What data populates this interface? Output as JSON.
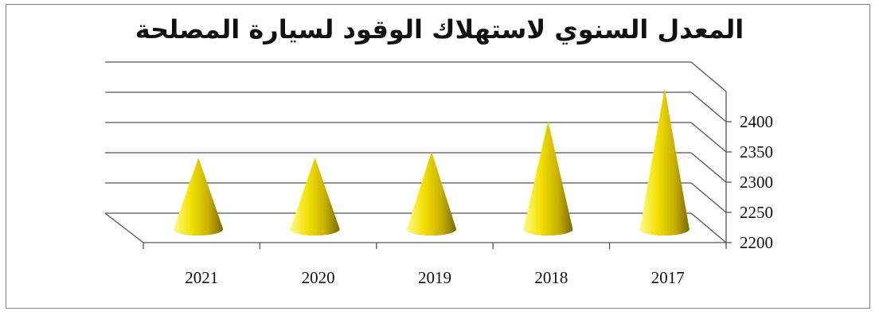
{
  "chart_data": {
    "type": "bar",
    "title": "المعدل السنوي لاستهلاك الوقود لسيارة المصلحة",
    "categories": [
      "2021",
      "2020",
      "2019",
      "2018",
      "2017"
    ],
    "values": [
      2300,
      2300,
      2310,
      2360,
      2415
    ],
    "ylim": [
      2200,
      2450
    ],
    "y_ticks": [
      "2200",
      "2250",
      "2300",
      "2350",
      "2400"
    ],
    "xlabel": "",
    "ylabel": "",
    "grid": true,
    "y_axis_side": "right",
    "mark_shape": "cone",
    "colors": {
      "cone_light": "#fff98a",
      "cone_mid": "#e8cf00",
      "cone_dark": "#7a6a00",
      "grid": "#555555"
    }
  }
}
